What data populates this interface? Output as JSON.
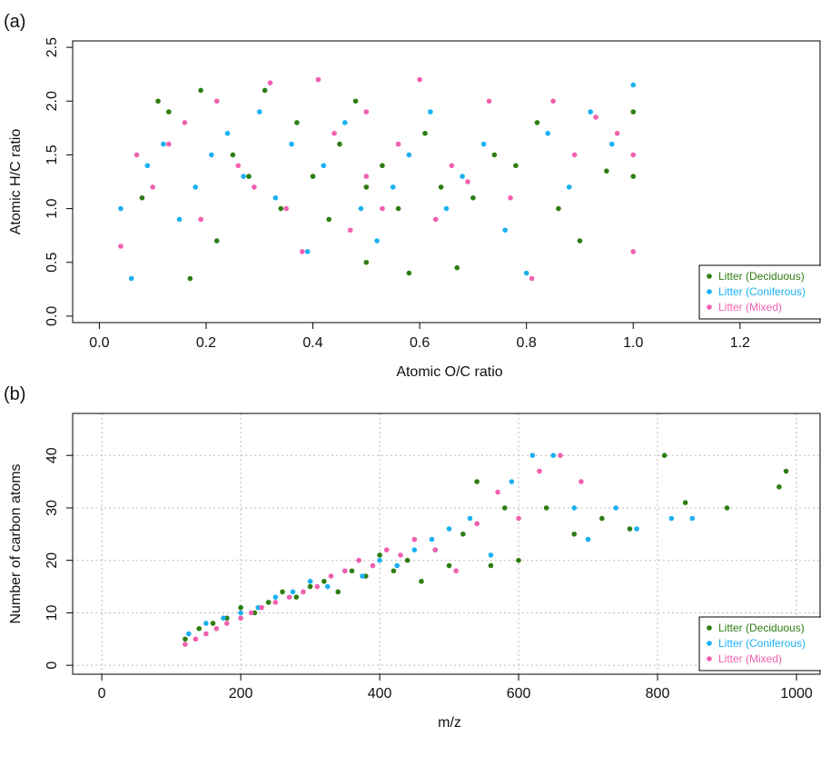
{
  "chart_data": [
    {
      "type": "scatter",
      "panel_label": "(a)",
      "x_label": "Atomic O/C ratio",
      "y_label": "Atomic H/C ratio",
      "xlim": [
        -0.05,
        1.35
      ],
      "ylim": [
        -0.06,
        2.56
      ],
      "xticks": [
        {
          "value": 0,
          "label": "0.0"
        },
        0.2,
        0.4,
        0.6,
        0.8,
        {
          "value": 1,
          "label": "1.0"
        },
        1.2
      ],
      "yticks": [
        {
          "value": 0,
          "label": "0.0"
        },
        0.5,
        {
          "value": 1,
          "label": "1.0"
        },
        1.5,
        {
          "value": 2,
          "label": "2.0"
        },
        2.5
      ],
      "grid": false,
      "legend": "bottom-right",
      "series": [
        {
          "name": "Litter (Deciduous)",
          "color": "#2e7d12",
          "x": [
            0.08,
            0.11,
            0.13,
            0.17,
            0.19,
            0.22,
            0.25,
            0.28,
            0.31,
            0.34,
            0.37,
            0.4,
            0.43,
            0.45,
            0.48,
            0.5,
            0.5,
            0.53,
            0.56,
            0.58,
            0.61,
            0.64,
            0.67,
            0.7,
            0.74,
            0.78,
            0.82,
            0.86,
            0.9,
            0.95,
            1.0,
            1.0
          ],
          "values": [
            1.1,
            2.0,
            1.9,
            0.35,
            2.1,
            0.7,
            1.5,
            1.3,
            2.1,
            1.0,
            1.8,
            1.3,
            0.9,
            1.6,
            2.0,
            0.5,
            1.2,
            1.4,
            1.0,
            0.4,
            1.7,
            1.2,
            0.45,
            1.1,
            1.5,
            1.4,
            1.8,
            1.0,
            0.7,
            1.35,
            1.9,
            1.3
          ]
        },
        {
          "name": "Litter (Coniferous)",
          "color": "#1ab0f0",
          "x": [
            0.04,
            0.06,
            0.09,
            0.12,
            0.15,
            0.18,
            0.21,
            0.24,
            0.27,
            0.3,
            0.33,
            0.36,
            0.39,
            0.42,
            0.46,
            0.49,
            0.52,
            0.55,
            0.58,
            0.62,
            0.65,
            0.68,
            0.72,
            0.76,
            0.8,
            0.84,
            0.88,
            0.92,
            0.96,
            1.0
          ],
          "values": [
            1.0,
            0.35,
            1.4,
            1.6,
            0.9,
            1.2,
            1.5,
            1.7,
            1.3,
            1.9,
            1.1,
            1.6,
            0.6,
            1.4,
            1.8,
            1.0,
            0.7,
            1.2,
            1.5,
            1.9,
            1.0,
            1.3,
            1.6,
            0.8,
            0.4,
            1.7,
            1.2,
            1.9,
            1.6,
            2.15
          ]
        },
        {
          "name": "Litter (Mixed)",
          "color": "#f060b0",
          "x": [
            0.04,
            0.07,
            0.1,
            0.13,
            0.16,
            0.19,
            0.22,
            0.26,
            0.29,
            0.32,
            0.35,
            0.38,
            0.41,
            0.44,
            0.47,
            0.5,
            0.5,
            0.53,
            0.56,
            0.6,
            0.63,
            0.66,
            0.69,
            0.73,
            0.77,
            0.81,
            0.85,
            0.89,
            0.93,
            0.97,
            1.0,
            1.0
          ],
          "values": [
            0.65,
            1.5,
            1.2,
            1.6,
            1.8,
            0.9,
            2.0,
            1.4,
            1.2,
            2.17,
            1.0,
            0.6,
            2.2,
            1.7,
            0.8,
            1.3,
            1.9,
            1.0,
            1.6,
            2.2,
            0.9,
            1.4,
            1.25,
            2.0,
            1.1,
            0.35,
            2.0,
            1.5,
            1.85,
            1.7,
            0.6,
            1.5
          ]
        }
      ]
    },
    {
      "type": "scatter",
      "panel_label": "(b)",
      "x_label": "m/z",
      "y_label": "Number of carbon atoms",
      "xlim": [
        -42,
        1034
      ],
      "ylim": [
        -1.7,
        48
      ],
      "xticks": [
        0,
        200,
        400,
        600,
        800,
        1000
      ],
      "yticks": [
        0,
        10,
        20,
        30,
        40
      ],
      "grid": true,
      "legend": "bottom-right",
      "series": [
        {
          "name": "Litter (Deciduous)",
          "color": "#2e7d12",
          "x": [
            120,
            140,
            160,
            180,
            200,
            220,
            240,
            260,
            280,
            300,
            320,
            340,
            360,
            380,
            400,
            420,
            440,
            460,
            480,
            500,
            520,
            540,
            560,
            580,
            600,
            640,
            680,
            720,
            760,
            810,
            840,
            900,
            975,
            985
          ],
          "values": [
            5,
            7,
            8,
            9,
            11,
            10,
            12,
            14,
            13,
            15,
            16,
            14,
            18,
            17,
            21,
            18,
            20,
            16,
            22,
            19,
            25,
            35,
            19,
            30,
            20,
            30,
            25,
            28,
            26,
            40,
            31,
            30,
            34,
            37
          ]
        },
        {
          "name": "Litter (Coniferous)",
          "color": "#1ab0f0",
          "x": [
            125,
            150,
            175,
            200,
            225,
            250,
            275,
            300,
            325,
            350,
            375,
            400,
            425,
            450,
            475,
            500,
            530,
            560,
            590,
            620,
            650,
            680,
            700,
            740,
            770,
            820,
            850
          ],
          "values": [
            6,
            8,
            9,
            10,
            11,
            13,
            14,
            16,
            15,
            18,
            17,
            20,
            19,
            22,
            24,
            26,
            28,
            21,
            35,
            40,
            40,
            30,
            24,
            30,
            26,
            28,
            28
          ]
        },
        {
          "name": "Litter (Mixed)",
          "color": "#f060b0",
          "x": [
            120,
            135,
            150,
            165,
            180,
            200,
            215,
            230,
            250,
            270,
            290,
            310,
            330,
            350,
            370,
            390,
            410,
            430,
            450,
            480,
            510,
            540,
            570,
            600,
            630,
            660,
            690
          ],
          "values": [
            4,
            5,
            6,
            7,
            8,
            9,
            10,
            11,
            12,
            13,
            14,
            15,
            17,
            18,
            20,
            19,
            22,
            21,
            24,
            22,
            18,
            27,
            33,
            28,
            37,
            40,
            35
          ]
        }
      ]
    }
  ]
}
